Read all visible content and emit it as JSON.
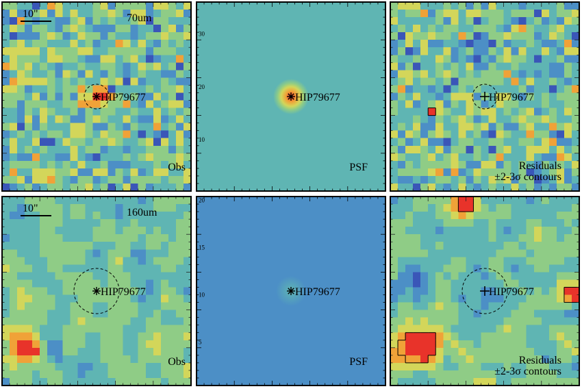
{
  "figure": {
    "scale_bar_label": "10\"",
    "target_name": "HIP79677",
    "rows": [
      {
        "band": "70um",
        "source_position": [
          12,
          12
        ],
        "source_strength": 1.0,
        "psf_strength": 1.0
      },
      {
        "band": "160um",
        "source_position": [
          12,
          12
        ],
        "source_strength": 0.15,
        "psf_strength": 0.15
      }
    ],
    "panels": [
      {
        "row": 0,
        "kind": "obs",
        "label": "Obs"
      },
      {
        "row": 0,
        "kind": "psf",
        "label": "PSF"
      },
      {
        "row": 0,
        "kind": "residuals",
        "label": "Residuals",
        "label2": "±2-3σ contours"
      },
      {
        "row": 1,
        "kind": "obs",
        "label": "Obs"
      },
      {
        "row": 1,
        "kind": "psf",
        "label": "PSF"
      },
      {
        "row": 1,
        "kind": "residuals",
        "label": "Residuals",
        "label2": "±2-3σ contours"
      }
    ],
    "axis_tick_labels": {
      "psf_70um": [
        "30",
        "20",
        "10"
      ],
      "psf_160um": [
        "20",
        "15",
        "10",
        "5"
      ]
    },
    "colormap": [
      "#3b1e8e",
      "#3a56b8",
      "#4c8fc6",
      "#5fb5b3",
      "#8fcc86",
      "#d3d65a",
      "#f0a238",
      "#e8332a"
    ]
  }
}
